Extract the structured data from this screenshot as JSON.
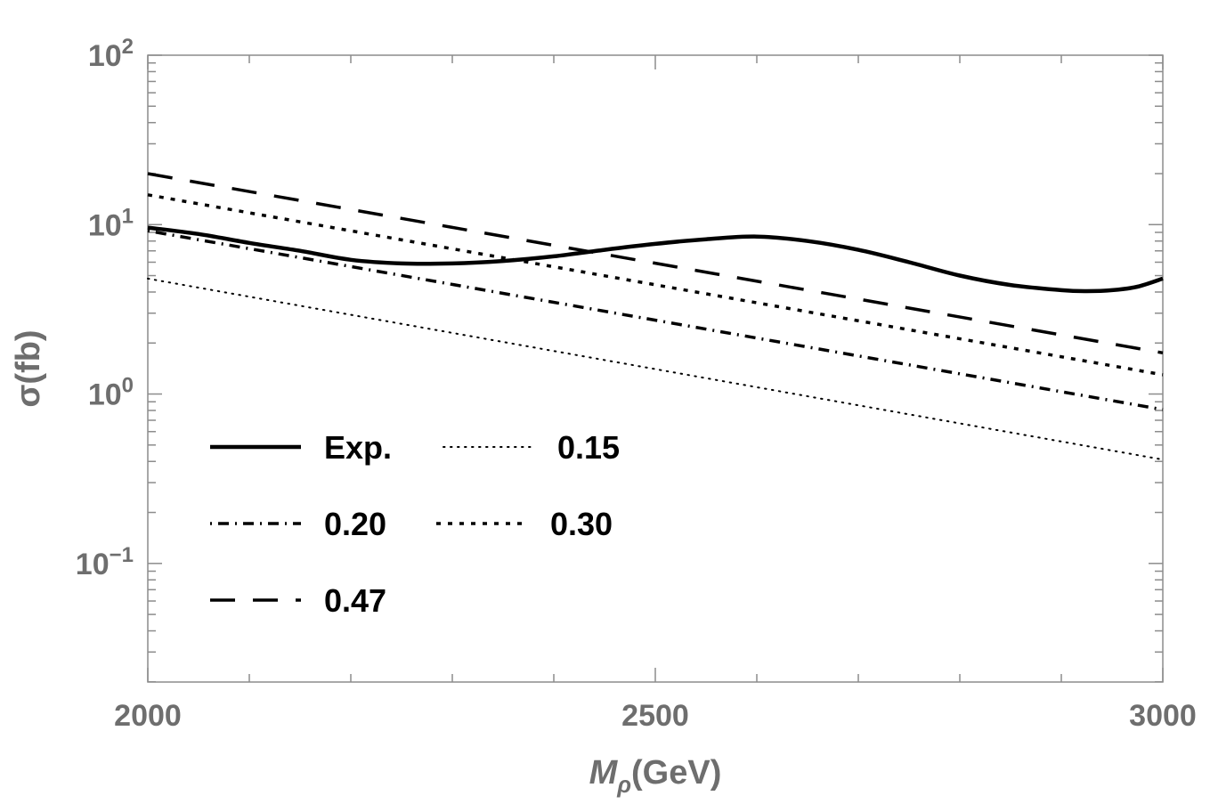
{
  "chart_data": {
    "type": "line",
    "title": "",
    "xlabel_main": "M",
    "xlabel_sub": "ρ",
    "xlabel_unit": "(GeV)",
    "ylabel": "σ(fb)",
    "xlim": [
      2000,
      3000
    ],
    "ylim_log10": [
      -1.7,
      2
    ],
    "x_ticks": [
      {
        "value": 2000,
        "label": "2000"
      },
      {
        "value": 2500,
        "label": "2500"
      },
      {
        "value": 3000,
        "label": "3000"
      }
    ],
    "y_ticks": [
      {
        "exp": 2,
        "base": "10",
        "sup": "2"
      },
      {
        "exp": 1,
        "base": "10",
        "sup": "1"
      },
      {
        "exp": 0,
        "base": "10",
        "sup": "0"
      },
      {
        "exp": -1,
        "base": "10",
        "sup": "−1"
      }
    ],
    "scale_y": "log",
    "series": [
      {
        "name": "Exp.",
        "style": "solid",
        "width": 4.5,
        "x": [
          2000,
          2050,
          2100,
          2150,
          2200,
          2250,
          2300,
          2350,
          2400,
          2450,
          2500,
          2550,
          2600,
          2650,
          2700,
          2750,
          2800,
          2850,
          2900,
          2925,
          2950,
          2975,
          3000
        ],
        "y": [
          9.6,
          8.8,
          7.8,
          7.0,
          6.2,
          5.9,
          5.9,
          6.1,
          6.5,
          7.1,
          7.7,
          8.2,
          8.5,
          8.0,
          7.1,
          6.0,
          5.0,
          4.4,
          4.1,
          4.05,
          4.1,
          4.3,
          4.8
        ]
      },
      {
        "name": "0.15",
        "style": "dotted",
        "width": 2,
        "x": [
          2000,
          3000
        ],
        "y": [
          4.8,
          0.41
        ]
      },
      {
        "name": "0.20",
        "style": "dashdot",
        "width": 3.5,
        "x": [
          2000,
          3000
        ],
        "y": [
          9.2,
          0.81
        ]
      },
      {
        "name": "0.30",
        "style": "shortdash",
        "width": 3.5,
        "x": [
          2000,
          3000
        ],
        "y": [
          15.0,
          1.3
        ]
      },
      {
        "name": "0.47",
        "style": "longdash",
        "width": 3.5,
        "x": [
          2000,
          3000
        ],
        "y": [
          20.0,
          1.75
        ]
      }
    ],
    "legend": {
      "placement": "lower-left",
      "rows": [
        [
          "Exp.",
          "0.15"
        ],
        [
          "0.20",
          "0.30"
        ],
        [
          "0.47"
        ]
      ]
    }
  }
}
